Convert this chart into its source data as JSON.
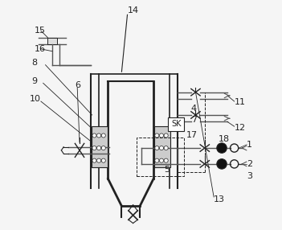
{
  "bg_color": "#f0f0f0",
  "line_color": "#555555",
  "dark_line": "#222222",
  "label_color": "#222222",
  "fontsize": 8
}
